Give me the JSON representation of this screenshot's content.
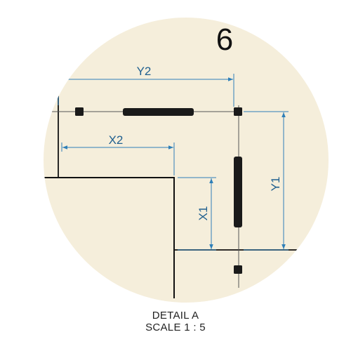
{
  "detail": {
    "number": "6",
    "title": "DETAIL A",
    "scale": "SCALE 1 : 5"
  },
  "dimensions": {
    "y2": "Y2",
    "x2": "X2",
    "y1": "Y1",
    "x1": "X1"
  },
  "colors": {
    "circle_fill": "#f5eedb",
    "dimension": "#2e7fb8",
    "outline": "#111111"
  }
}
